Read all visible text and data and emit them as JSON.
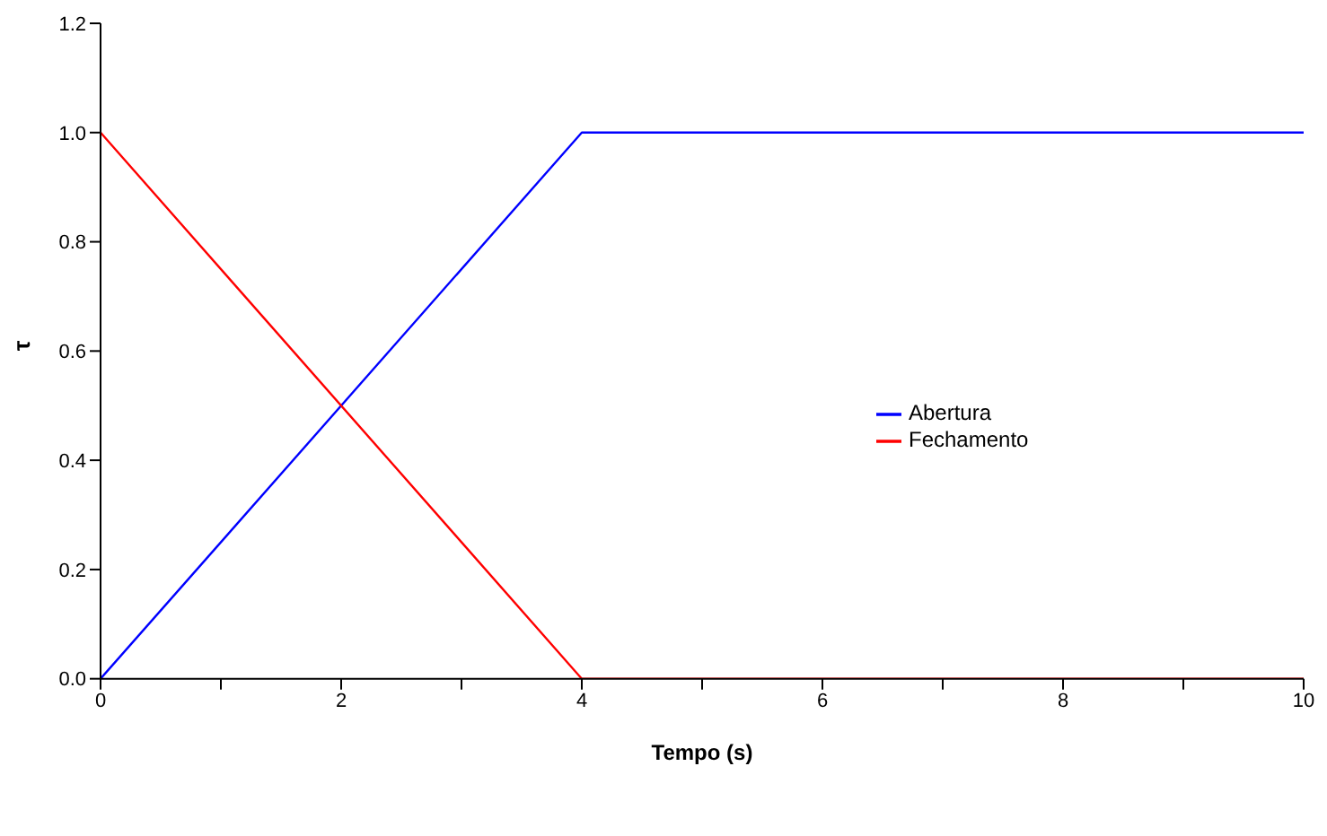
{
  "chart_data": {
    "type": "line",
    "xlabel": "Tempo (s)",
    "ylabel": "τ",
    "xlim": [
      0,
      10
    ],
    "xticks": [
      0,
      {
        "value": 1,
        "label": null
      },
      2,
      {
        "value": 3,
        "label": null
      },
      4,
      {
        "value": 5,
        "label": null
      },
      6,
      {
        "value": 7,
        "label": null
      },
      8,
      {
        "value": 9,
        "label": null
      },
      10
    ],
    "ylim": [
      0,
      1.2
    ],
    "yticks": [
      {
        "value": 0,
        "label": "0.0"
      },
      0.2,
      0.4,
      0.6,
      0.8,
      {
        "value": 1,
        "label": "1.0"
      },
      1.2
    ],
    "grid": false,
    "legend": "right",
    "marker": "none",
    "line_style": "solid",
    "series": [
      {
        "name": "Abertura",
        "color": "#0000ff",
        "x": [
          0,
          4,
          10
        ],
        "values": [
          0,
          1,
          1
        ]
      },
      {
        "name": "Fechamento",
        "color": "#ff0000",
        "x": [
          0,
          4,
          10
        ],
        "values": [
          1,
          0,
          0
        ]
      }
    ]
  }
}
